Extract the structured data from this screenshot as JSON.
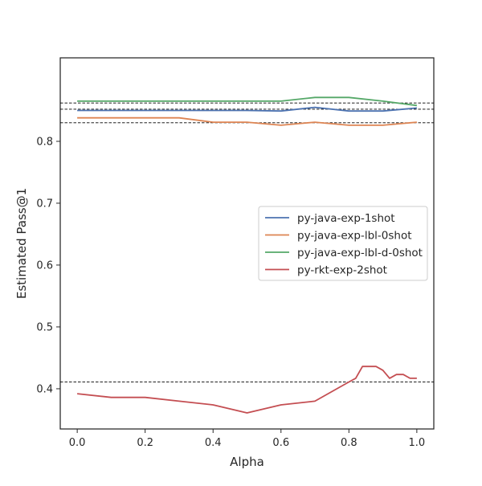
{
  "chart_data": {
    "type": "line",
    "title": "",
    "xlabel": "Alpha",
    "ylabel": "Estimated Pass@1",
    "xlim": [
      -0.05,
      1.05
    ],
    "ylim": [
      0.335,
      0.935
    ],
    "xticks": [
      0.0,
      0.2,
      0.4,
      0.6,
      0.8,
      1.0
    ],
    "xtick_labels": [
      "0.0",
      "0.2",
      "0.4",
      "0.6",
      "0.8",
      "1.0"
    ],
    "yticks": [
      0.4,
      0.5,
      0.6,
      0.7,
      0.8
    ],
    "ytick_labels": [
      "0.4",
      "0.5",
      "0.6",
      "0.7",
      "0.8"
    ],
    "grid": false,
    "legend_position": "center-right",
    "series": [
      {
        "name": "py-java-exp-1shot",
        "color": "#4c72b0",
        "x": [
          0.0,
          0.1,
          0.2,
          0.3,
          0.4,
          0.5,
          0.6,
          0.7,
          0.8,
          0.9,
          1.0
        ],
        "y": [
          0.85,
          0.85,
          0.85,
          0.85,
          0.85,
          0.85,
          0.849,
          0.855,
          0.849,
          0.849,
          0.854
        ]
      },
      {
        "name": "py-java-exp-lbl-0shot",
        "color": "#dd8452",
        "x": [
          0.0,
          0.1,
          0.2,
          0.3,
          0.4,
          0.5,
          0.6,
          0.7,
          0.8,
          0.9,
          1.0
        ],
        "y": [
          0.838,
          0.838,
          0.838,
          0.838,
          0.831,
          0.831,
          0.826,
          0.831,
          0.826,
          0.826,
          0.831
        ]
      },
      {
        "name": "py-java-exp-lbl-d-0shot",
        "color": "#55a868",
        "x": [
          0.0,
          0.1,
          0.2,
          0.3,
          0.4,
          0.5,
          0.6,
          0.7,
          0.8,
          0.9,
          1.0
        ],
        "y": [
          0.865,
          0.865,
          0.865,
          0.865,
          0.865,
          0.865,
          0.865,
          0.871,
          0.871,
          0.865,
          0.858
        ]
      },
      {
        "name": "py-rkt-exp-2shot",
        "color": "#c44e52",
        "x": [
          0.0,
          0.1,
          0.2,
          0.3,
          0.4,
          0.5,
          0.6,
          0.7,
          0.8,
          0.82,
          0.84,
          0.86,
          0.88,
          0.9,
          0.92,
          0.94,
          0.96,
          0.98,
          1.0
        ],
        "y": [
          0.392,
          0.386,
          0.386,
          0.38,
          0.374,
          0.361,
          0.374,
          0.38,
          0.411,
          0.417,
          0.436,
          0.436,
          0.436,
          0.43,
          0.417,
          0.423,
          0.423,
          0.417,
          0.417
        ]
      }
    ],
    "reference_lines": [
      0.862,
      0.852,
      0.83,
      0.411
    ]
  }
}
